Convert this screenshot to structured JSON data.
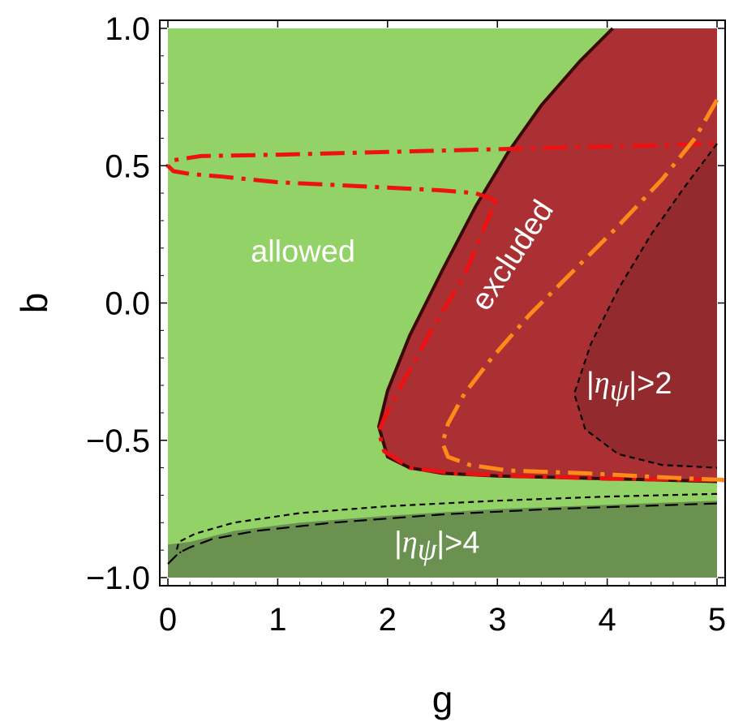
{
  "chart_data": {
    "type": "area",
    "title": "",
    "xlabel": "g",
    "ylabel": "b",
    "xlim": [
      0,
      5
    ],
    "ylim": [
      -1,
      1
    ],
    "x_ticks": [
      {
        "value": 0,
        "label": "0"
      },
      {
        "value": 1,
        "label": "1"
      },
      {
        "value": 2,
        "label": "2"
      },
      {
        "value": 3,
        "label": "3"
      },
      {
        "value": 4,
        "label": "4"
      },
      {
        "value": 5,
        "label": "5"
      }
    ],
    "y_ticks": [
      {
        "value": 1.0,
        "label": "1.0"
      },
      {
        "value": 0.5,
        "label": "0.5"
      },
      {
        "value": 0.0,
        "label": "0.0"
      },
      {
        "value": -0.5,
        "label": "−0.5"
      },
      {
        "value": -1.0,
        "label": "−1.0"
      }
    ],
    "grid": false,
    "colors": {
      "allowed": "#93d266",
      "excluded": "#aa3033",
      "eta2": "#932a2d",
      "eta4": "#6a9150",
      "red_curve": "#ee1111",
      "orange_curve": "#ff8a1a",
      "black": "#000000"
    },
    "regions": [
      {
        "name": "allowed",
        "points": [
          [
            0,
            -1
          ],
          [
            5,
            -1
          ],
          [
            5,
            1
          ],
          [
            0,
            1
          ]
        ]
      },
      {
        "name": "excluded",
        "points": [
          [
            4.05,
            1
          ],
          [
            5,
            1
          ],
          [
            5,
            -0.65
          ],
          [
            4.5,
            -0.645
          ],
          [
            4.0,
            -0.64
          ],
          [
            3.5,
            -0.635
          ],
          [
            3.0,
            -0.63
          ],
          [
            2.5,
            -0.62
          ],
          [
            2.2,
            -0.6
          ],
          [
            2.0,
            -0.56
          ],
          [
            1.92,
            -0.45
          ],
          [
            2.0,
            -0.32
          ],
          [
            2.2,
            -0.12
          ],
          [
            2.5,
            0.12
          ],
          [
            2.8,
            0.35
          ],
          [
            3.1,
            0.55
          ],
          [
            3.4,
            0.72
          ],
          [
            3.75,
            0.88
          ],
          [
            4.05,
            1
          ]
        ]
      },
      {
        "name": "|eta_psi|>2",
        "points": [
          [
            5,
            0.58
          ],
          [
            4.7,
            0.42
          ],
          [
            4.4,
            0.25
          ],
          [
            4.1,
            0.05
          ],
          [
            3.85,
            -0.15
          ],
          [
            3.7,
            -0.33
          ],
          [
            3.8,
            -0.46
          ],
          [
            4.1,
            -0.55
          ],
          [
            4.5,
            -0.59
          ],
          [
            5,
            -0.6
          ]
        ]
      },
      {
        "name": "|eta_psi|>4",
        "points": [
          [
            0,
            -1
          ],
          [
            5,
            -1
          ],
          [
            5,
            -0.72
          ],
          [
            4.0,
            -0.735
          ],
          [
            3.0,
            -0.75
          ],
          [
            2.0,
            -0.775
          ],
          [
            1.2,
            -0.8
          ],
          [
            0.6,
            -0.83
          ],
          [
            0.2,
            -0.87
          ],
          [
            0,
            -0.88
          ]
        ]
      }
    ],
    "series": [
      {
        "style": "red-dash-dot",
        "x": [
          3.0,
          2.95,
          2.8,
          2.5,
          2.0,
          1.5,
          1.0,
          0.5,
          0.2,
          0.05,
          0.0,
          0.05,
          0.3,
          1.0,
          2.0,
          3.0,
          4.0,
          5.0
        ],
        "y": [
          0.36,
          0.38,
          0.4,
          0.41,
          0.42,
          0.43,
          0.44,
          0.46,
          0.47,
          0.48,
          0.5,
          0.52,
          0.535,
          0.54,
          0.55,
          0.56,
          0.57,
          0.58
        ]
      },
      {
        "style": "red-dash-dot",
        "x": [
          2.95,
          2.7,
          2.4,
          2.15,
          1.97,
          1.92,
          1.97,
          2.2,
          2.6,
          3.2,
          4.0,
          5.0,
          5.1
        ],
        "y": [
          0.34,
          0.1,
          -0.1,
          -0.28,
          -0.42,
          -0.47,
          -0.54,
          -0.6,
          -0.62,
          -0.63,
          -0.64,
          -0.645,
          -0.645
        ]
      },
      {
        "style": "orange-dash-dot",
        "x": [
          5.0,
          4.8,
          4.5,
          4.1,
          3.7,
          3.3,
          2.95,
          2.7,
          2.55,
          2.5,
          2.55,
          2.75,
          3.1,
          3.8,
          4.5,
          5.1
        ],
        "y": [
          0.74,
          0.6,
          0.45,
          0.28,
          0.12,
          -0.04,
          -0.2,
          -0.33,
          -0.44,
          -0.51,
          -0.56,
          -0.59,
          -0.61,
          -0.62,
          -0.635,
          -0.645
        ]
      },
      {
        "style": "black-short-dash",
        "x": [
          5.0,
          4.7,
          4.4,
          4.1,
          3.85,
          3.7,
          3.8,
          4.1,
          4.5,
          5.0
        ],
        "y": [
          0.58,
          0.42,
          0.25,
          0.05,
          -0.15,
          -0.33,
          -0.46,
          -0.55,
          -0.59,
          -0.6
        ]
      },
      {
        "style": "black-short-dash",
        "x": [
          5.0,
          4.0,
          3.0,
          2.0,
          1.2,
          0.6,
          0.25,
          0.1,
          0.08,
          0.12
        ],
        "y": [
          -0.695,
          -0.705,
          -0.72,
          -0.74,
          -0.765,
          -0.8,
          -0.84,
          -0.87,
          -0.9,
          -0.91
        ]
      },
      {
        "style": "black-long-dash",
        "x": [
          0.0,
          0.05,
          0.1,
          0.2,
          0.4,
          0.8,
          1.5,
          2.5,
          3.5,
          5.0
        ],
        "y": [
          -0.95,
          -0.93,
          -0.91,
          -0.89,
          -0.86,
          -0.83,
          -0.8,
          -0.77,
          -0.75,
          -0.73
        ]
      },
      {
        "style": "black-solid",
        "x": [
          4.05,
          3.75,
          3.4,
          3.1,
          2.8,
          2.5,
          2.2,
          2.0,
          1.92,
          2.0,
          2.2,
          2.5,
          3.0,
          3.5,
          4.0,
          4.5,
          5.0
        ],
        "y": [
          1.0,
          0.88,
          0.72,
          0.55,
          0.35,
          0.12,
          -0.12,
          -0.32,
          -0.45,
          -0.56,
          -0.6,
          -0.62,
          -0.63,
          -0.635,
          -0.64,
          -0.645,
          -0.65
        ]
      }
    ],
    "annotations": [
      {
        "text": "allowed",
        "x": 1.23,
        "y": 0.18
      },
      {
        "text": "excluded",
        "x": 3.15,
        "y": 0.17,
        "rotation": -57
      },
      {
        "text_prefix": "|",
        "text_eta": "η",
        "text_sub": "ψ",
        "text_suffix": "|>2",
        "x": 4.2,
        "y": -0.3
      },
      {
        "text_prefix": "|",
        "text_eta": "η",
        "text_sub": "ψ",
        "text_suffix": "|>4",
        "x": 2.45,
        "y": -0.88
      }
    ]
  }
}
